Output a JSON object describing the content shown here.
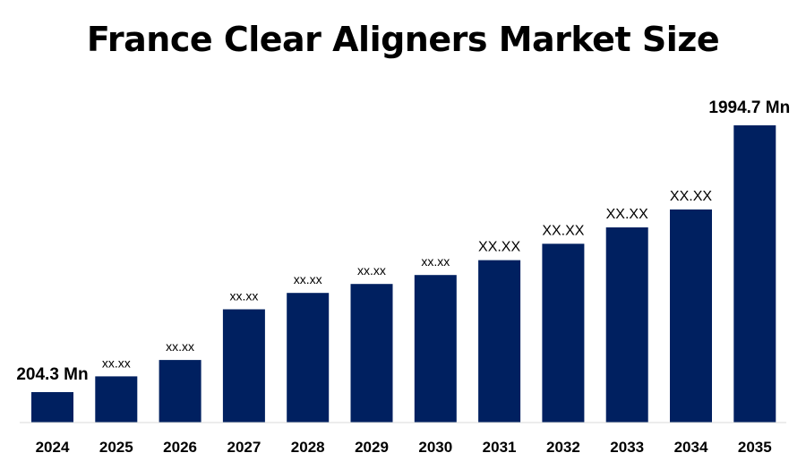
{
  "chart_data": {
    "type": "bar",
    "title": "France Clear Aligners Market Size",
    "xlabel": "",
    "ylabel": "",
    "unit": "Mn",
    "categories": [
      "2024",
      "2025",
      "2026",
      "2027",
      "2028",
      "2029",
      "2030",
      "2031",
      "2032",
      "2033",
      "2034",
      "2035"
    ],
    "values": [
      204.3,
      310,
      420,
      760,
      870,
      930,
      990,
      1090,
      1200,
      1310,
      1430,
      1994.7
    ],
    "data_labels": [
      "204.3 Mn",
      "xx.xx",
      "xx.xx",
      "xx.xx",
      "xx.xx",
      "xx.xx",
      "xx.xx",
      "XX.XX",
      "XX.XX",
      "XX.XX",
      "XX.XX",
      "1994.7 Mn"
    ],
    "label_style": [
      "end",
      "small",
      "small",
      "small",
      "small",
      "small",
      "small",
      "big",
      "big",
      "big",
      "big",
      "end"
    ],
    "ylim": [
      0,
      1994.7
    ],
    "grid": false,
    "bar_color": "#002060"
  }
}
